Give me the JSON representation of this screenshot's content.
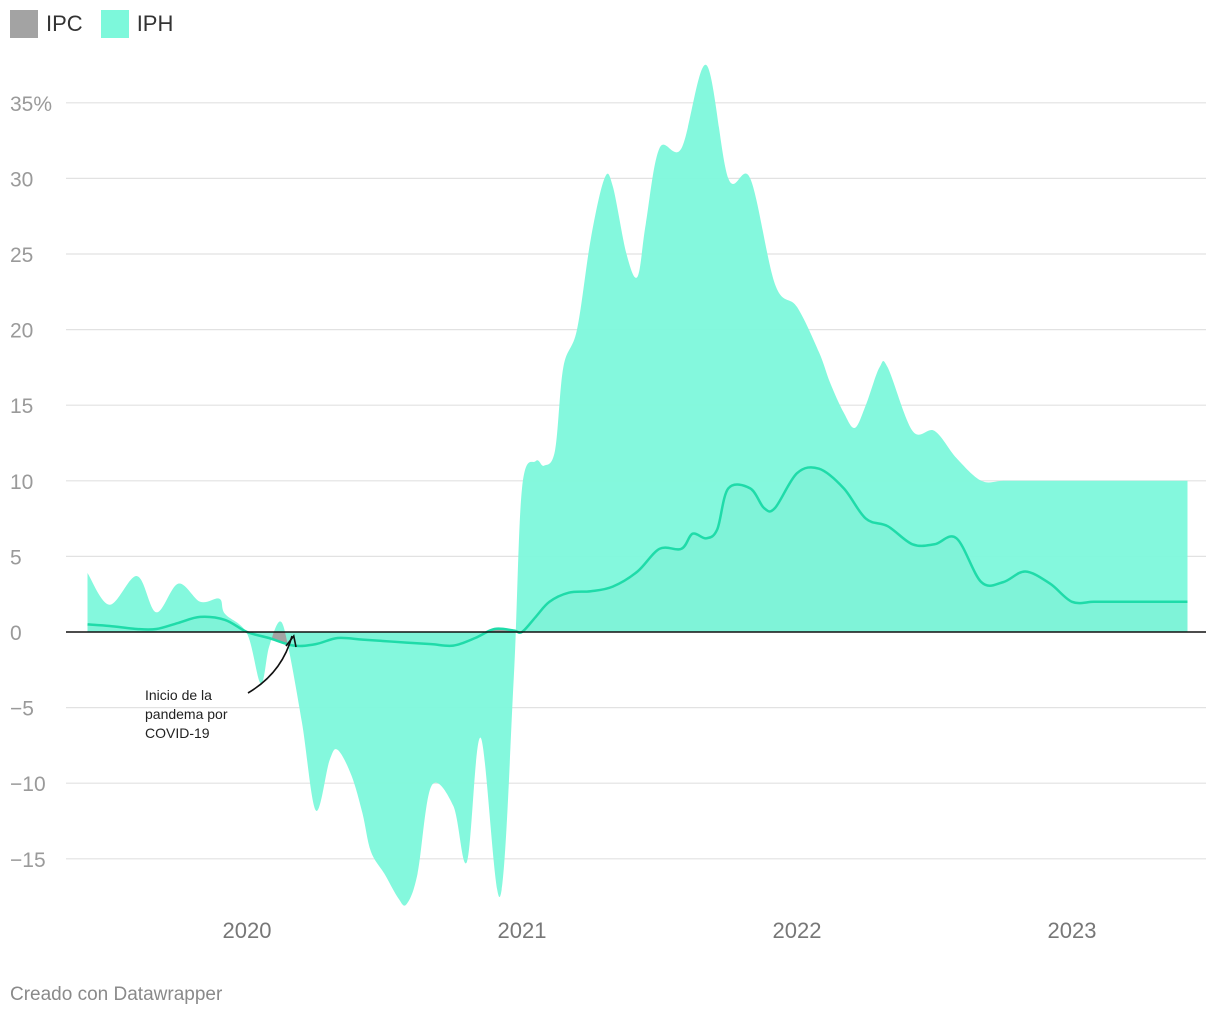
{
  "chart_data": {
    "type": "area",
    "title": "",
    "xlabel": "",
    "ylabel": "",
    "ylim": [
      -18,
      37.5
    ],
    "xlim": [
      2019.42,
      2023.42
    ],
    "y_ticks": [
      35,
      30,
      25,
      20,
      15,
      10,
      5,
      0,
      -5,
      -10,
      -15
    ],
    "y_tick_labels": [
      "35%",
      "30",
      "25",
      "20",
      "15",
      "10",
      "5",
      "0",
      "−5",
      "−10",
      "−15"
    ],
    "x_ticks": [
      2020,
      2021,
      2022,
      2023
    ],
    "x_tick_labels": [
      "2020",
      "2021",
      "2022",
      "2023"
    ],
    "series": [
      {
        "name": "IPH",
        "color": "#7df8db",
        "x": [
          2019.42,
          2019.5,
          2019.6,
          2019.67,
          2019.75,
          2019.83,
          2019.9,
          2019.92,
          2020.0,
          2020.05,
          2020.08,
          2020.12,
          2020.15,
          2020.2,
          2020.25,
          2020.3,
          2020.33,
          2020.38,
          2020.42,
          2020.45,
          2020.5,
          2020.55,
          2020.58,
          2020.62,
          2020.67,
          2020.75,
          2020.8,
          2020.85,
          2020.92,
          2020.97,
          2021.0,
          2021.05,
          2021.08,
          2021.12,
          2021.15,
          2021.2,
          2021.25,
          2021.3,
          2021.33,
          2021.38,
          2021.42,
          2021.45,
          2021.5,
          2021.58,
          2021.67,
          2021.75,
          2021.83,
          2021.92,
          2022.0,
          2022.08,
          2022.12,
          2022.17,
          2022.21,
          2022.25,
          2022.3,
          2022.33,
          2022.42,
          2022.5,
          2022.58,
          2022.67,
          2022.75,
          2022.83,
          2022.92,
          2023.0,
          2023.08,
          2023.17,
          2023.25,
          2023.33,
          2023.42
        ],
        "values": [
          3.9,
          1.8,
          3.7,
          1.3,
          3.2,
          2.0,
          2.2,
          1.2,
          -0.1,
          -3.4,
          -1.0,
          0.7,
          -1.0,
          -6.0,
          -11.8,
          -8.5,
          -7.8,
          -9.5,
          -12.0,
          -14.5,
          -16.0,
          -17.6,
          -18.0,
          -16.0,
          -10.2,
          -11.5,
          -15.2,
          -7.0,
          -17.5,
          -3.0,
          9.5,
          11.3,
          11.0,
          12.0,
          17.5,
          20.0,
          26.0,
          30.0,
          29.5,
          25.0,
          23.5,
          27.0,
          32.0,
          32.0,
          37.5,
          30.0,
          30.0,
          23.0,
          21.5,
          18.5,
          16.5,
          14.5,
          13.5,
          15.0,
          17.5,
          17.5,
          13.3,
          13.3,
          11.5,
          10.0,
          10.0,
          10.0,
          10.0,
          10.0,
          10.0,
          10.0,
          10.0,
          10.0,
          10.0
        ]
      },
      {
        "name": "IPC",
        "color": "#9b9b9b",
        "x": [
          2019.42,
          2019.5,
          2019.6,
          2019.67,
          2019.75,
          2019.83,
          2019.92,
          2020.0,
          2020.08,
          2020.17,
          2020.25,
          2020.33,
          2020.42,
          2020.5,
          2020.58,
          2020.67,
          2020.75,
          2020.83,
          2020.9,
          2020.97,
          2021.0,
          2021.05,
          2021.1,
          2021.17,
          2021.25,
          2021.33,
          2021.42,
          2021.5,
          2021.58,
          2021.62,
          2021.67,
          2021.71,
          2021.75,
          2021.83,
          2021.88,
          2021.92,
          2022.0,
          2022.08,
          2022.17,
          2022.25,
          2022.33,
          2022.42,
          2022.5,
          2022.58,
          2022.67,
          2022.75,
          2022.83,
          2022.92,
          2023.0,
          2023.08,
          2023.17,
          2023.25,
          2023.33,
          2023.42
        ],
        "values": [
          0.5,
          0.4,
          0.2,
          0.2,
          0.6,
          1.0,
          0.8,
          0.0,
          -0.4,
          -0.9,
          -0.8,
          -0.4,
          -0.5,
          -0.6,
          -0.7,
          -0.8,
          -0.9,
          -0.4,
          0.2,
          0.1,
          0.0,
          1.0,
          2.0,
          2.6,
          2.7,
          3.0,
          4.0,
          5.5,
          5.5,
          6.5,
          6.2,
          6.8,
          9.5,
          9.5,
          8.2,
          8.2,
          10.5,
          10.8,
          9.5,
          7.5,
          7.0,
          5.8,
          5.8,
          6.2,
          3.3,
          3.3,
          4.0,
          3.2,
          2.0,
          2.0,
          2.0,
          2.0,
          2.0,
          2.0
        ]
      }
    ],
    "annotation": {
      "lines": [
        "Inicio de la",
        "pandema por",
        "COVID-19"
      ],
      "x": 2020.17,
      "y": 0
    }
  },
  "legend": [
    {
      "label": "IPC",
      "color": "#a3a3a3"
    },
    {
      "label": "IPH",
      "color": "#7df8db"
    }
  ],
  "credit": "Creado con Datawrapper"
}
